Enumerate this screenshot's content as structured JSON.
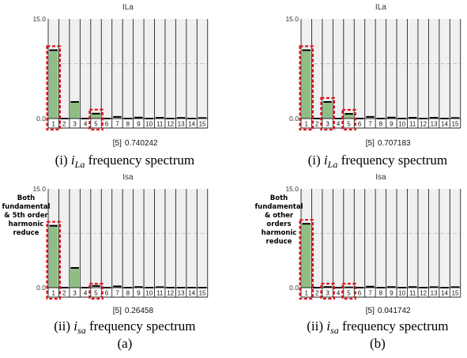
{
  "chart_data": [
    {
      "type": "bar",
      "title": "ILa",
      "categories": [
        "1",
        "2",
        "3",
        "4",
        "5",
        "6",
        "7",
        "8",
        "9",
        "10",
        "11",
        "12",
        "13",
        "14",
        "15"
      ],
      "values": [
        10.3,
        0.0,
        2.5,
        0.0,
        0.74,
        0.0,
        0.25,
        0.0,
        0.15,
        0.0,
        0.12,
        0.0,
        0.1,
        0.0,
        0.08
      ],
      "ylim": [
        0,
        15
      ],
      "yticks": [
        "15.0",
        "0.0"
      ],
      "highlighted": [
        "1",
        "5"
      ],
      "readout_label": "[5]",
      "readout_value": "0.740242",
      "caption_prefix": "(i) ",
      "caption_var": "i",
      "caption_sub": "La",
      "caption_suffix": " frequency spectrum",
      "annotation": []
    },
    {
      "type": "bar",
      "title": "ILa",
      "categories": [
        "1",
        "2",
        "3",
        "4",
        "5",
        "6",
        "7",
        "8",
        "9",
        "10",
        "11",
        "12",
        "13",
        "14",
        "15"
      ],
      "values": [
        10.3,
        0.0,
        2.5,
        0.0,
        0.71,
        0.0,
        0.25,
        0.0,
        0.15,
        0.0,
        0.12,
        0.0,
        0.12,
        0.0,
        0.08
      ],
      "ylim": [
        0,
        15
      ],
      "yticks": [
        "15.0",
        "0.0"
      ],
      "highlighted": [
        "1",
        "3",
        "5"
      ],
      "readout_label": "[5]",
      "readout_value": "0.707183",
      "caption_prefix": "(i) ",
      "caption_var": "i",
      "caption_sub": "La",
      "caption_suffix": " frequency spectrum",
      "annotation": []
    },
    {
      "type": "bar",
      "title": "Isa",
      "categories": [
        "1",
        "2",
        "3",
        "4",
        "5",
        "6",
        "7",
        "8",
        "9",
        "10",
        "11",
        "12",
        "13",
        "14",
        "15"
      ],
      "values": [
        9.4,
        0.0,
        3.0,
        0.0,
        0.26,
        0.0,
        0.2,
        0.0,
        0.1,
        0.0,
        0.08,
        0.0,
        0.0,
        0.0,
        0.0
      ],
      "ylim": [
        0,
        15
      ],
      "yticks": [
        "15.0",
        "0.0"
      ],
      "highlighted": [
        "1",
        "5"
      ],
      "readout_label": "[5]",
      "readout_value": "0.26458",
      "caption_prefix": "(ii) ",
      "caption_var": "i",
      "caption_sub": "sa",
      "caption_suffix": " frequency spectrum",
      "annotation": [
        "Both",
        "fundamental",
        "& 5th order",
        "harmonic",
        "reduce"
      ]
    },
    {
      "type": "bar",
      "title": "Isa",
      "categories": [
        "1",
        "2",
        "3",
        "4",
        "5",
        "6",
        "7",
        "8",
        "9",
        "10",
        "11",
        "12",
        "13",
        "14",
        "15"
      ],
      "values": [
        9.7,
        0.0,
        0.1,
        0.0,
        0.04,
        0.0,
        0.15,
        0.0,
        0.1,
        0.0,
        0.1,
        0.0,
        0.08,
        0.0,
        0.08
      ],
      "ylim": [
        0,
        15
      ],
      "yticks": [
        "15.0",
        "0.0"
      ],
      "highlighted": [
        "1",
        "3",
        "5"
      ],
      "readout_label": "[5]",
      "readout_value": "0.041742",
      "caption_prefix": "(ii) ",
      "caption_var": "i",
      "caption_sub": "sa",
      "caption_suffix": " frequency spectrum",
      "annotation": [
        "Both",
        "fundamental",
        "& other",
        "orders",
        "harmonic",
        "reduce"
      ]
    }
  ],
  "column_labels": [
    "(a)",
    "(b)"
  ],
  "colors": {
    "bar_fill": "#8fbe83",
    "bar_top": "#000000",
    "panel_bg": "#f0f0f0",
    "grid": "#222222",
    "highlight": "#e0141e",
    "midline": "#bbbbbb"
  }
}
